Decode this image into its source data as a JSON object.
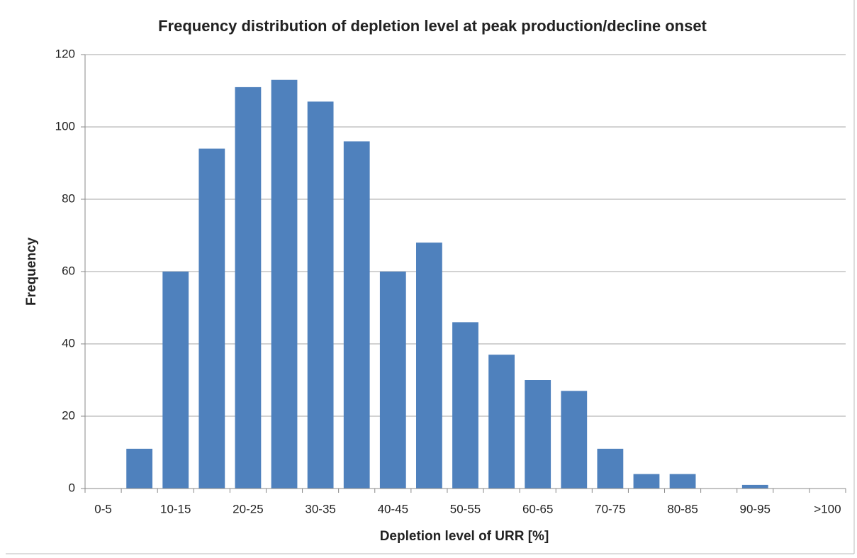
{
  "chart_data": {
    "type": "bar",
    "title": "Frequency distribution of depletion level at peak production/decline onset",
    "x_label": "Depletion level of URR [%]",
    "y_label": "Frequency",
    "categories": [
      "0-5",
      null,
      "10-15",
      null,
      "20-25",
      null,
      "30-35",
      null,
      "40-45",
      null,
      "50-55",
      null,
      "60-65",
      null,
      "70-75",
      null,
      "80-85",
      null,
      "90-95",
      null,
      ">100"
    ],
    "values": [
      0,
      11,
      60,
      94,
      111,
      113,
      107,
      96,
      60,
      68,
      46,
      37,
      30,
      27,
      11,
      4,
      4,
      0,
      1,
      0,
      0
    ],
    "color": "#4f81bd",
    "ylim": [
      0,
      120
    ],
    "yticks": [
      0,
      20,
      40,
      60,
      80,
      100,
      120
    ],
    "grid": true
  }
}
